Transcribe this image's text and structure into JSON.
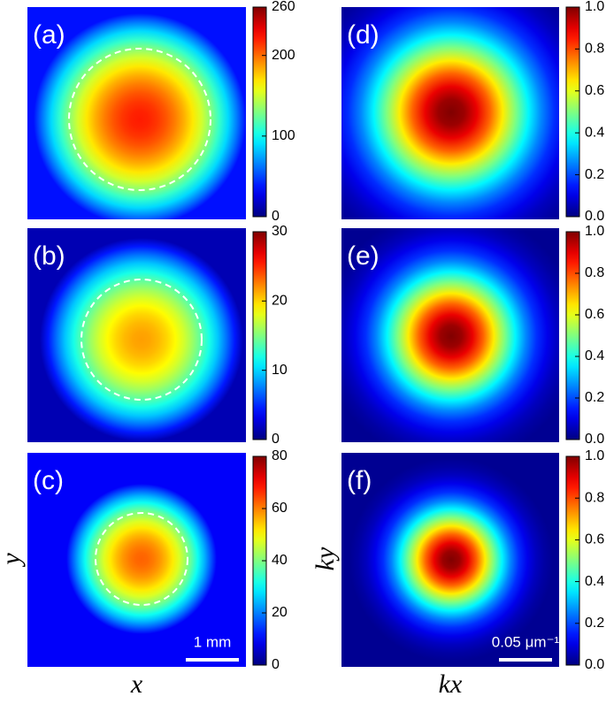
{
  "chart_data": [
    {
      "type": "heatmap",
      "label": "(a)",
      "clim": [
        0,
        260
      ],
      "cticks": [
        0,
        100,
        200,
        260
      ]
    },
    {
      "type": "heatmap",
      "label": "(b)",
      "clim": [
        0,
        30
      ],
      "cticks": [
        0,
        10,
        20,
        30
      ]
    },
    {
      "type": "heatmap",
      "label": "(c)",
      "clim": [
        0,
        80
      ],
      "cticks": [
        0,
        20,
        40,
        60,
        80
      ],
      "xlabel": "x",
      "ylabel": "y",
      "scale_bar": "1 mm"
    },
    {
      "type": "heatmap",
      "label": "(d)",
      "clim": [
        0,
        1
      ],
      "cticks": [
        {
          "value": 0,
          "label": "0.0"
        },
        0.2,
        0.4,
        0.6,
        0.8,
        {
          "value": 1,
          "label": "1.0"
        }
      ]
    },
    {
      "type": "heatmap",
      "label": "(e)",
      "clim": [
        0,
        1
      ],
      "cticks": [
        {
          "value": 0,
          "label": "0.0"
        },
        0.2,
        0.4,
        0.6,
        0.8,
        {
          "value": 1,
          "label": "1.0"
        }
      ]
    },
    {
      "type": "heatmap",
      "label": "(f)",
      "clim": [
        0,
        1
      ],
      "cticks": [
        {
          "value": 0,
          "label": "0.0"
        },
        0.2,
        0.4,
        0.6,
        0.8,
        {
          "value": 1,
          "label": "1.0"
        }
      ],
      "xlabel": "kx",
      "ylabel": "ky",
      "scale_bar": "0.05 μm⁻¹"
    }
  ]
}
